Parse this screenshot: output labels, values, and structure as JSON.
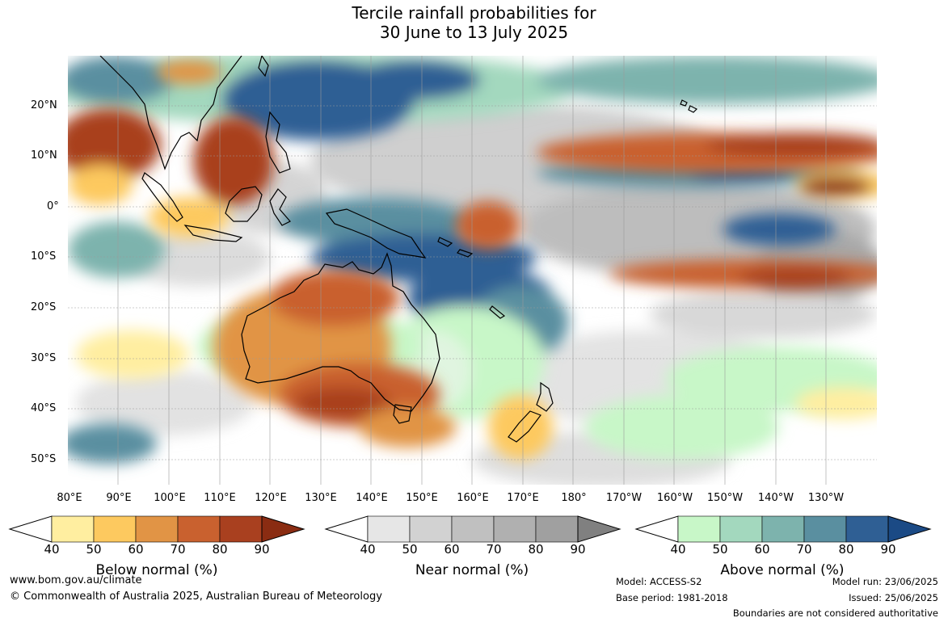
{
  "title": {
    "line1": "Tercile rainfall probabilities for",
    "line2": "30 June to 13 July 2025"
  },
  "map": {
    "lat_labels": [
      "20°N",
      "10°N",
      "0°",
      "10°S",
      "20°S",
      "30°S",
      "40°S",
      "50°S"
    ],
    "lon_labels": [
      "80°E",
      "90°E",
      "100°E",
      "110°E",
      "120°E",
      "130°E",
      "140°E",
      "150°E",
      "160°E",
      "170°E",
      "180°",
      "170°W",
      "160°W",
      "150°W",
      "140°W",
      "130°W"
    ]
  },
  "legends": [
    {
      "title": "Below normal (%)",
      "ticks": [
        "40",
        "50",
        "60",
        "70",
        "80",
        "90"
      ],
      "colors": [
        "#ffeea0",
        "#fdc95f",
        "#e19445",
        "#c9612f",
        "#a9401f",
        "#8a2c12"
      ]
    },
    {
      "title": "Near normal (%)",
      "ticks": [
        "40",
        "50",
        "60",
        "70",
        "80",
        "90"
      ],
      "colors": [
        "#e6e6e6",
        "#d2d2d2",
        "#c0c0c0",
        "#b0b0b0",
        "#a0a0a0",
        "#808080"
      ]
    },
    {
      "title": "Above normal (%)",
      "ticks": [
        "40",
        "50",
        "60",
        "70",
        "80",
        "90"
      ],
      "colors": [
        "#c8f7c8",
        "#a3d8be",
        "#7db3ad",
        "#5a8fa0",
        "#2f5f94",
        "#1b4a85"
      ]
    }
  ],
  "footer": {
    "website": "www.bom.gov.au/climate",
    "copyright": "© Commonwealth of Australia 2025, Australian Bureau of Meteorology",
    "model": "Model: ACCESS-S2",
    "base_period": "Base period: 1981-2018",
    "model_run": "Model run: 23/06/2025",
    "issued": "Issued: 25/06/2025",
    "disclaimer": "Boundaries are not considered authoritative"
  }
}
